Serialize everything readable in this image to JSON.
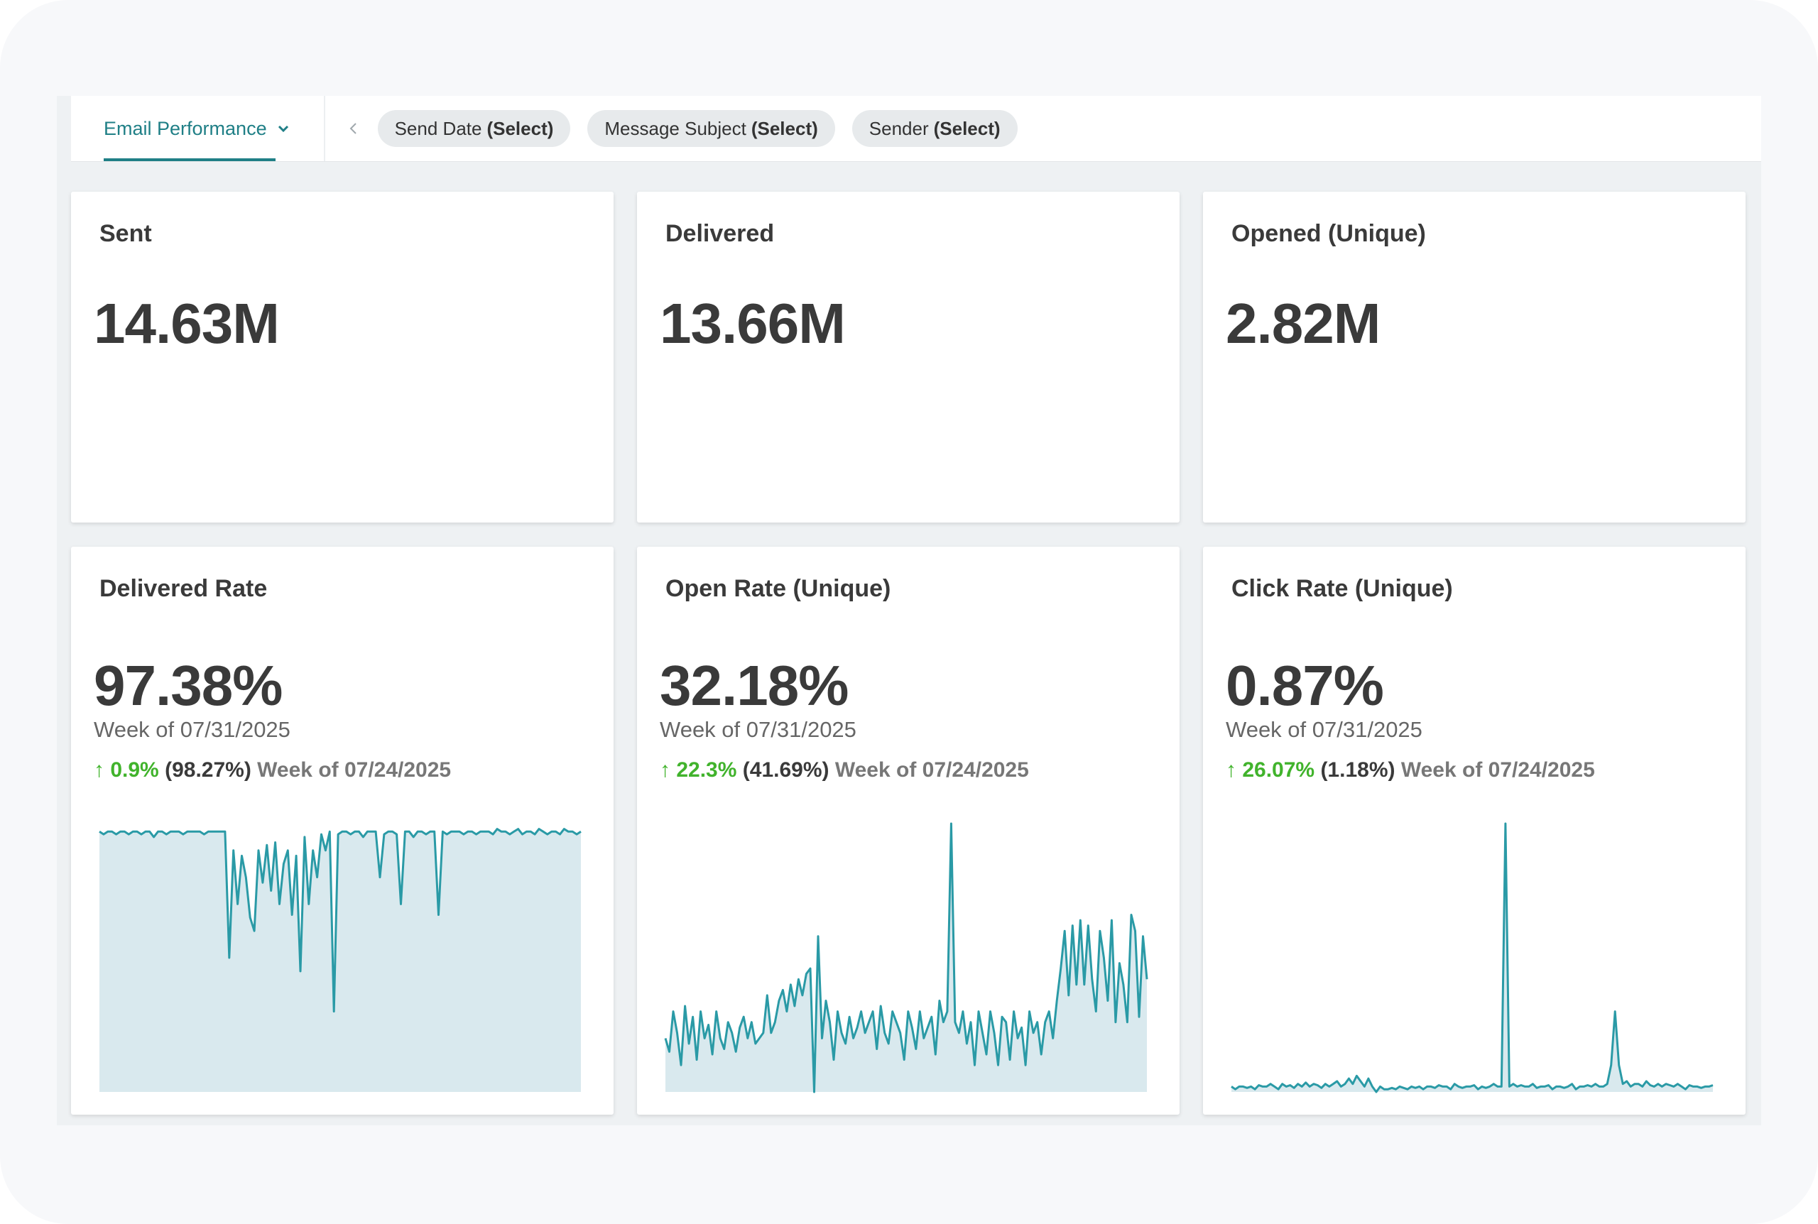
{
  "toolbar": {
    "view_label": "Email Performance",
    "filters": [
      {
        "label": "Send Date",
        "value": "(Select)"
      },
      {
        "label": "Message Subject",
        "value": "(Select)"
      },
      {
        "label": "Sender",
        "value": "(Select)"
      }
    ]
  },
  "kpis": [
    {
      "title": "Sent",
      "value": "14.63M"
    },
    {
      "title": "Delivered",
      "value": "13.66M"
    },
    {
      "title": "Opened (Unique)",
      "value": "2.82M"
    }
  ],
  "rates": [
    {
      "title": "Delivered Rate",
      "value": "97.38%",
      "period": "Week of 07/31/2025",
      "change_arrow": "↑",
      "change_pct": "0.9%",
      "prev_value": "(98.27%)",
      "prev_period": "Week of 07/24/2025"
    },
    {
      "title": "Open Rate (Unique)",
      "value": "32.18%",
      "period": "Week of 07/31/2025",
      "change_arrow": "↑",
      "change_pct": "22.3%",
      "prev_value": "(41.69%)",
      "prev_period": "Week of 07/24/2025"
    },
    {
      "title": "Click Rate (Unique)",
      "value": "0.87%",
      "period": "Week of 07/31/2025",
      "change_arrow": "↑",
      "change_pct": "26.07%",
      "prev_value": "(1.18%)",
      "prev_period": "Week of 07/24/2025"
    }
  ],
  "colors": {
    "accent": "#1f7f86",
    "positive": "#41b32c",
    "spark_line": "#2a9aa6",
    "spark_fill": "#d9e9ee"
  },
  "chart_data": [
    {
      "type": "area",
      "series": [
        {
          "values": [
            0.97,
            0.96,
            0.97,
            0.97,
            0.96,
            0.97,
            0.97,
            0.96,
            0.97,
            0.97,
            0.96,
            0.97,
            0.97,
            0.95,
            0.97,
            0.97,
            0.96,
            0.97,
            0.97,
            0.97,
            0.96,
            0.97,
            0.97,
            0.97,
            0.97,
            0.96,
            0.97,
            0.97,
            0.97,
            0.97,
            0.97,
            0.5,
            0.9,
            0.7,
            0.88,
            0.8,
            0.65,
            0.6,
            0.9,
            0.78,
            0.92,
            0.75,
            0.93,
            0.7,
            0.85,
            0.9,
            0.66,
            0.88,
            0.45,
            0.95,
            0.7,
            0.9,
            0.8,
            0.96,
            0.9,
            0.97,
            0.3,
            0.96,
            0.97,
            0.97,
            0.96,
            0.97,
            0.97,
            0.95,
            0.97,
            0.97,
            0.97,
            0.8,
            0.96,
            0.97,
            0.97,
            0.96,
            0.7,
            0.97,
            0.97,
            0.95,
            0.97,
            0.97,
            0.96,
            0.97,
            0.97,
            0.66,
            0.97,
            0.96,
            0.97,
            0.97,
            0.97,
            0.96,
            0.97,
            0.97,
            0.96,
            0.97,
            0.97,
            0.97,
            0.96,
            0.98,
            0.97,
            0.97,
            0.96,
            0.97,
            0.98,
            0.96,
            0.97,
            0.97,
            0.96,
            0.98,
            0.97,
            0.96,
            0.97,
            0.97,
            0.96,
            0.98,
            0.97,
            0.97,
            0.96,
            0.97
          ]
        }
      ]
    },
    {
      "type": "area",
      "series": [
        {
          "values": [
            0.2,
            0.15,
            0.3,
            0.22,
            0.1,
            0.32,
            0.18,
            0.28,
            0.12,
            0.3,
            0.2,
            0.25,
            0.14,
            0.3,
            0.2,
            0.16,
            0.26,
            0.22,
            0.15,
            0.24,
            0.28,
            0.2,
            0.26,
            0.18,
            0.2,
            0.22,
            0.36,
            0.22,
            0.26,
            0.34,
            0.38,
            0.3,
            0.4,
            0.32,
            0.42,
            0.36,
            0.44,
            0.46,
            0.0,
            0.58,
            0.2,
            0.34,
            0.26,
            0.12,
            0.3,
            0.22,
            0.18,
            0.28,
            0.2,
            0.24,
            0.3,
            0.22,
            0.26,
            0.3,
            0.16,
            0.32,
            0.22,
            0.18,
            0.3,
            0.26,
            0.22,
            0.12,
            0.3,
            0.24,
            0.16,
            0.3,
            0.2,
            0.24,
            0.28,
            0.14,
            0.34,
            0.26,
            0.3,
            1.0,
            0.26,
            0.22,
            0.3,
            0.18,
            0.26,
            0.1,
            0.3,
            0.22,
            0.14,
            0.3,
            0.22,
            0.1,
            0.28,
            0.26,
            0.12,
            0.3,
            0.2,
            0.24,
            0.1,
            0.3,
            0.22,
            0.26,
            0.14,
            0.26,
            0.3,
            0.2,
            0.34,
            0.46,
            0.6,
            0.36,
            0.62,
            0.4,
            0.64,
            0.4,
            0.62,
            0.42,
            0.3,
            0.6,
            0.5,
            0.34,
            0.64,
            0.26,
            0.48,
            0.4,
            0.26,
            0.66,
            0.6,
            0.28,
            0.58,
            0.42
          ]
        }
      ]
    },
    {
      "type": "area",
      "series": [
        {
          "values": [
            0.02,
            0.01,
            0.02,
            0.02,
            0.015,
            0.02,
            0.01,
            0.025,
            0.02,
            0.02,
            0.03,
            0.02,
            0.01,
            0.03,
            0.02,
            0.025,
            0.015,
            0.03,
            0.02,
            0.035,
            0.02,
            0.03,
            0.025,
            0.015,
            0.03,
            0.02,
            0.03,
            0.04,
            0.02,
            0.03,
            0.05,
            0.03,
            0.06,
            0.04,
            0.02,
            0.05,
            0.02,
            0.0,
            0.02,
            0.01,
            0.01,
            0.015,
            0.01,
            0.02,
            0.015,
            0.01,
            0.02,
            0.015,
            0.02,
            0.01,
            0.02,
            0.02,
            0.015,
            0.025,
            0.02,
            0.02,
            0.01,
            0.03,
            0.02,
            0.015,
            0.02,
            0.02,
            0.025,
            0.01,
            0.02,
            0.015,
            0.02,
            0.03,
            0.02,
            0.02,
            1.0,
            0.02,
            0.03,
            0.02,
            0.025,
            0.02,
            0.02,
            0.03,
            0.015,
            0.02,
            0.02,
            0.025,
            0.01,
            0.02,
            0.02,
            0.015,
            0.02,
            0.03,
            0.01,
            0.02,
            0.02,
            0.025,
            0.02,
            0.03,
            0.02,
            0.02,
            0.03,
            0.1,
            0.3,
            0.1,
            0.03,
            0.04,
            0.02,
            0.03,
            0.03,
            0.02,
            0.04,
            0.025,
            0.02,
            0.03,
            0.02,
            0.03,
            0.025,
            0.02,
            0.03,
            0.02,
            0.01,
            0.025,
            0.02,
            0.02,
            0.015,
            0.02,
            0.02,
            0.025
          ]
        }
      ]
    }
  ]
}
